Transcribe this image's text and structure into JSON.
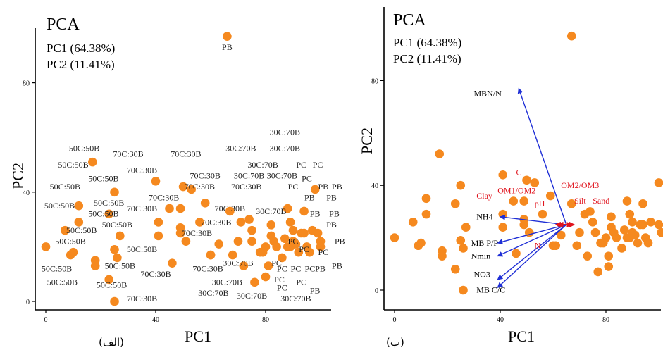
{
  "chart_data": [
    {
      "type": "scatter",
      "title": "PCA",
      "variance_lines": [
        "PC1 (64.38%)",
        "PC2 (11.41%)"
      ],
      "xlabel": "PC1",
      "ylabel": "PC2",
      "caption": "(الف)",
      "xlim": [
        -3,
        110
      ],
      "ylim": [
        -3,
        108
      ],
      "xticks": [
        0,
        40,
        80
      ],
      "yticks": [
        0,
        40,
        80
      ],
      "points": [
        {
          "x": 0,
          "y": 20
        },
        {
          "x": 9,
          "y": 17
        },
        {
          "x": 10,
          "y": 18
        },
        {
          "x": 7,
          "y": 26
        },
        {
          "x": 12,
          "y": 29
        },
        {
          "x": 12,
          "y": 35
        },
        {
          "x": 17,
          "y": 51
        },
        {
          "x": 18,
          "y": 15
        },
        {
          "x": 18,
          "y": 13
        },
        {
          "x": 25,
          "y": 40
        },
        {
          "x": 23,
          "y": 32
        },
        {
          "x": 27,
          "y": 24
        },
        {
          "x": 25,
          "y": 19
        },
        {
          "x": 26,
          "y": 16
        },
        {
          "x": 23,
          "y": 8
        },
        {
          "x": 25,
          "y": 0
        },
        {
          "x": 40,
          "y": 44
        },
        {
          "x": 41,
          "y": 29
        },
        {
          "x": 41,
          "y": 24
        },
        {
          "x": 45,
          "y": 34
        },
        {
          "x": 46,
          "y": 14
        },
        {
          "x": 49,
          "y": 34
        },
        {
          "x": 49,
          "y": 27
        },
        {
          "x": 49,
          "y": 25
        },
        {
          "x": 50,
          "y": 42
        },
        {
          "x": 51,
          "y": 22
        },
        {
          "x": 53,
          "y": 41
        },
        {
          "x": 56,
          "y": 29
        },
        {
          "x": 58,
          "y": 36
        },
        {
          "x": 60,
          "y": 17
        },
        {
          "x": 60,
          "y": 17
        },
        {
          "x": 63,
          "y": 21
        },
        {
          "x": 66,
          "y": 97
        },
        {
          "x": 67,
          "y": 33
        },
        {
          "x": 68,
          "y": 17
        },
        {
          "x": 70,
          "y": 22
        },
        {
          "x": 71,
          "y": 29
        },
        {
          "x": 72,
          "y": 13
        },
        {
          "x": 74,
          "y": 30
        },
        {
          "x": 75,
          "y": 26
        },
        {
          "x": 75,
          "y": 22
        },
        {
          "x": 76,
          "y": 7
        },
        {
          "x": 78,
          "y": 18
        },
        {
          "x": 79,
          "y": 18
        },
        {
          "x": 80,
          "y": 20
        },
        {
          "x": 80,
          "y": 9
        },
        {
          "x": 81,
          "y": 13
        },
        {
          "x": 82,
          "y": 28
        },
        {
          "x": 82,
          "y": 24
        },
        {
          "x": 83,
          "y": 22
        },
        {
          "x": 84,
          "y": 20
        },
        {
          "x": 86,
          "y": 16
        },
        {
          "x": 87,
          "y": 23
        },
        {
          "x": 88,
          "y": 34
        },
        {
          "x": 88,
          "y": 20
        },
        {
          "x": 89,
          "y": 29
        },
        {
          "x": 89,
          "y": 20
        },
        {
          "x": 90,
          "y": 26
        },
        {
          "x": 90,
          "y": 22
        },
        {
          "x": 91,
          "y": 21
        },
        {
          "x": 92,
          "y": 18
        },
        {
          "x": 93,
          "y": 25
        },
        {
          "x": 94,
          "y": 33
        },
        {
          "x": 94,
          "y": 25
        },
        {
          "x": 95,
          "y": 20
        },
        {
          "x": 96,
          "y": 18
        },
        {
          "x": 97,
          "y": 26
        },
        {
          "x": 98,
          "y": 41
        },
        {
          "x": 99,
          "y": 25
        },
        {
          "x": 100,
          "y": 22
        },
        {
          "x": 100,
          "y": 20
        }
      ],
      "point_labels": [
        {
          "text": "PB",
          "x": 66,
          "y": 92
        },
        {
          "text": "30C:70B",
          "x": 87,
          "y": 61
        },
        {
          "text": "30C:70B",
          "x": 87,
          "y": 55
        },
        {
          "text": "70C:30B",
          "x": 30,
          "y": 53
        },
        {
          "text": "70C:30B",
          "x": 51,
          "y": 53
        },
        {
          "text": "30C:70B",
          "x": 71,
          "y": 55
        },
        {
          "text": "50C:50B",
          "x": 14,
          "y": 55
        },
        {
          "text": "50C:50B",
          "x": 10,
          "y": 49
        },
        {
          "text": "70C:30B",
          "x": 35,
          "y": 47
        },
        {
          "text": "PC",
          "x": 93,
          "y": 49
        },
        {
          "text": "PC",
          "x": 99,
          "y": 49
        },
        {
          "text": "30C:70B",
          "x": 79,
          "y": 49
        },
        {
          "text": "70C:30B",
          "x": 58,
          "y": 45
        },
        {
          "text": "30C:70B",
          "x": 74,
          "y": 45
        },
        {
          "text": "30C:70B",
          "x": 86,
          "y": 45
        },
        {
          "text": "PC",
          "x": 95,
          "y": 44
        },
        {
          "text": "PB",
          "x": 101,
          "y": 41
        },
        {
          "text": "PB",
          "x": 106,
          "y": 41
        },
        {
          "text": "50C:50B",
          "x": 21,
          "y": 44
        },
        {
          "text": "50C:50B",
          "x": 7,
          "y": 41
        },
        {
          "text": "70C:30B",
          "x": 56,
          "y": 41
        },
        {
          "text": "70C:30B",
          "x": 73,
          "y": 41
        },
        {
          "text": "PC",
          "x": 90,
          "y": 41
        },
        {
          "text": "70C:30B",
          "x": 43,
          "y": 37
        },
        {
          "text": "PB",
          "x": 96,
          "y": 37
        },
        {
          "text": "PB",
          "x": 104,
          "y": 37
        },
        {
          "text": "50C:50B",
          "x": 23,
          "y": 35
        },
        {
          "text": "50C:50B",
          "x": 5,
          "y": 34
        },
        {
          "text": "70C:30B",
          "x": 35,
          "y": 33
        },
        {
          "text": "70C:30B",
          "x": 67,
          "y": 33
        },
        {
          "text": "30C:70B",
          "x": 82,
          "y": 32
        },
        {
          "text": "PB",
          "x": 98,
          "y": 31
        },
        {
          "text": "PB",
          "x": 105,
          "y": 31
        },
        {
          "text": "50C:50B",
          "x": 21,
          "y": 31
        },
        {
          "text": "70C:30B",
          "x": 62,
          "y": 28
        },
        {
          "text": "PB",
          "x": 104,
          "y": 27
        },
        {
          "text": "50C:50B",
          "x": 26,
          "y": 27
        },
        {
          "text": "50C:50B",
          "x": 13,
          "y": 25
        },
        {
          "text": "70C:30B",
          "x": 55,
          "y": 24
        },
        {
          "text": "50C:50B",
          "x": 9,
          "y": 21
        },
        {
          "text": "PC",
          "x": 90,
          "y": 21
        },
        {
          "text": "PB",
          "x": 107,
          "y": 21
        },
        {
          "text": "50C:50B",
          "x": 35,
          "y": 18
        },
        {
          "text": "PC",
          "x": 94,
          "y": 18
        },
        {
          "text": "PC",
          "x": 101,
          "y": 17
        },
        {
          "text": "30C:70B",
          "x": 70,
          "y": 13
        },
        {
          "text": "PC",
          "x": 84,
          "y": 13
        },
        {
          "text": "50C:50B",
          "x": 4,
          "y": 11
        },
        {
          "text": "50C:50B",
          "x": 27,
          "y": 12
        },
        {
          "text": "70C:30B",
          "x": 40,
          "y": 9
        },
        {
          "text": "70C:30B",
          "x": 59,
          "y": 11
        },
        {
          "text": "PC",
          "x": 86,
          "y": 11
        },
        {
          "text": "PC",
          "x": 91,
          "y": 11
        },
        {
          "text": "PCPB",
          "x": 98,
          "y": 11
        },
        {
          "text": "PB",
          "x": 106,
          "y": 12
        },
        {
          "text": "50C:50B",
          "x": 6,
          "y": 6
        },
        {
          "text": "30C:70B",
          "x": 66,
          "y": 6
        },
        {
          "text": "PC",
          "x": 85,
          "y": 7
        },
        {
          "text": "PC",
          "x": 93,
          "y": 6
        },
        {
          "text": "PC",
          "x": 86,
          "y": 4
        },
        {
          "text": "50C:50B",
          "x": 24,
          "y": 5
        },
        {
          "text": "30C:70B",
          "x": 61,
          "y": 2
        },
        {
          "text": "PB",
          "x": 98,
          "y": 3
        },
        {
          "text": "70C:30B",
          "x": 35,
          "y": 0
        },
        {
          "text": "30C:70B",
          "x": 75,
          "y": 1
        },
        {
          "text": "30C:70B",
          "x": 91,
          "y": 0
        }
      ]
    },
    {
      "type": "scatter",
      "title": "PCA",
      "variance_lines": [
        "PC1 (64.38%)",
        "PC2 (11.41%)"
      ],
      "xlabel": "PC1",
      "ylabel": "PC2",
      "caption": "(ب)",
      "xlim": [
        -3,
        103
      ],
      "ylim": [
        -5,
        110
      ],
      "xticks": [
        0,
        40,
        80
      ],
      "yticks": [
        0,
        40,
        80
      ],
      "origin": [
        65,
        25
      ],
      "points": [
        {
          "x": 0,
          "y": 20
        },
        {
          "x": 9,
          "y": 17
        },
        {
          "x": 10,
          "y": 18
        },
        {
          "x": 7,
          "y": 26
        },
        {
          "x": 12,
          "y": 29
        },
        {
          "x": 12,
          "y": 35
        },
        {
          "x": 17,
          "y": 52
        },
        {
          "x": 18,
          "y": 15
        },
        {
          "x": 18,
          "y": 13
        },
        {
          "x": 25,
          "y": 40
        },
        {
          "x": 23,
          "y": 33
        },
        {
          "x": 27,
          "y": 24
        },
        {
          "x": 25,
          "y": 19
        },
        {
          "x": 26,
          "y": 16
        },
        {
          "x": 23,
          "y": 8
        },
        {
          "x": 26,
          "y": 0
        },
        {
          "x": 41,
          "y": 44
        },
        {
          "x": 41,
          "y": 29
        },
        {
          "x": 41,
          "y": 24
        },
        {
          "x": 45,
          "y": 34
        },
        {
          "x": 46,
          "y": 14
        },
        {
          "x": 49,
          "y": 34
        },
        {
          "x": 49,
          "y": 27
        },
        {
          "x": 49,
          "y": 25
        },
        {
          "x": 50,
          "y": 42
        },
        {
          "x": 51,
          "y": 22
        },
        {
          "x": 53,
          "y": 41
        },
        {
          "x": 56,
          "y": 29
        },
        {
          "x": 59,
          "y": 36
        },
        {
          "x": 60,
          "y": 17
        },
        {
          "x": 61,
          "y": 17
        },
        {
          "x": 63,
          "y": 21
        },
        {
          "x": 67,
          "y": 97
        },
        {
          "x": 67,
          "y": 33
        },
        {
          "x": 69,
          "y": 17
        },
        {
          "x": 70,
          "y": 22
        },
        {
          "x": 72,
          "y": 29
        },
        {
          "x": 73,
          "y": 13
        },
        {
          "x": 74,
          "y": 30
        },
        {
          "x": 75,
          "y": 26
        },
        {
          "x": 76,
          "y": 22
        },
        {
          "x": 77,
          "y": 7
        },
        {
          "x": 78,
          "y": 18
        },
        {
          "x": 79,
          "y": 18
        },
        {
          "x": 80,
          "y": 20
        },
        {
          "x": 81,
          "y": 9
        },
        {
          "x": 81,
          "y": 13
        },
        {
          "x": 82,
          "y": 28
        },
        {
          "x": 82,
          "y": 24
        },
        {
          "x": 83,
          "y": 22
        },
        {
          "x": 84,
          "y": 20
        },
        {
          "x": 86,
          "y": 16
        },
        {
          "x": 87,
          "y": 23
        },
        {
          "x": 88,
          "y": 34
        },
        {
          "x": 88,
          "y": 20
        },
        {
          "x": 89,
          "y": 29
        },
        {
          "x": 89,
          "y": 20
        },
        {
          "x": 90,
          "y": 26
        },
        {
          "x": 90,
          "y": 22
        },
        {
          "x": 91,
          "y": 21
        },
        {
          "x": 92,
          "y": 18
        },
        {
          "x": 93,
          "y": 25
        },
        {
          "x": 94,
          "y": 33
        },
        {
          "x": 94,
          "y": 25
        },
        {
          "x": 95,
          "y": 20
        },
        {
          "x": 96,
          "y": 18
        },
        {
          "x": 97,
          "y": 26
        },
        {
          "x": 100,
          "y": 41
        },
        {
          "x": 100,
          "y": 25
        },
        {
          "x": 101,
          "y": 22
        }
      ],
      "vectors": [
        {
          "name": "MBN/N",
          "x": 47,
          "y": 77,
          "color": "blue",
          "label_x": 30,
          "label_y": 74
        },
        {
          "name": "NH4",
          "x": 40,
          "y": 28,
          "color": "blue",
          "label_x": 31,
          "label_y": 27
        },
        {
          "name": "MB P/P",
          "x": 39,
          "y": 18,
          "color": "blue",
          "label_x": 29,
          "label_y": 17
        },
        {
          "name": "Nmin",
          "x": 39,
          "y": 13,
          "color": "blue",
          "label_x": 29,
          "label_y": 12
        },
        {
          "name": "MB C/C",
          "x": 39,
          "y": 1,
          "color": "blue",
          "label_x": 31,
          "label_y": -1
        },
        {
          "name": "C",
          "x": 62,
          "y": 25,
          "color": "red",
          "label_x": 46,
          "label_y": 44
        },
        {
          "name": "Clay",
          "x": 61,
          "y": 25,
          "color": "red",
          "label_x": 31,
          "label_y": 35
        },
        {
          "name": "OM1/OM2",
          "x": 61,
          "y": 25,
          "color": "red",
          "label_x": 39,
          "label_y": 37
        },
        {
          "name": "pH",
          "x": 62,
          "y": 25,
          "color": "red",
          "label_x": 53,
          "label_y": 32
        },
        {
          "name": "N",
          "x": 62,
          "y": 25,
          "color": "red",
          "label_x": 53,
          "label_y": 16
        },
        {
          "name": "OM2/OM3",
          "x": 67,
          "y": 25,
          "color": "red",
          "label_x": 63,
          "label_y": 39
        },
        {
          "name": "Silt",
          "x": 68,
          "y": 25,
          "color": "red",
          "label_x": 68,
          "label_y": 33
        },
        {
          "name": "Sand",
          "x": 68,
          "y": 25,
          "color": "red",
          "label_x": 75,
          "label_y": 33
        }
      ],
      "blue_vectors": [
        {
          "name": "NO3",
          "x": 39,
          "y": 4,
          "label_x": 30,
          "label_y": 5
        }
      ]
    }
  ]
}
